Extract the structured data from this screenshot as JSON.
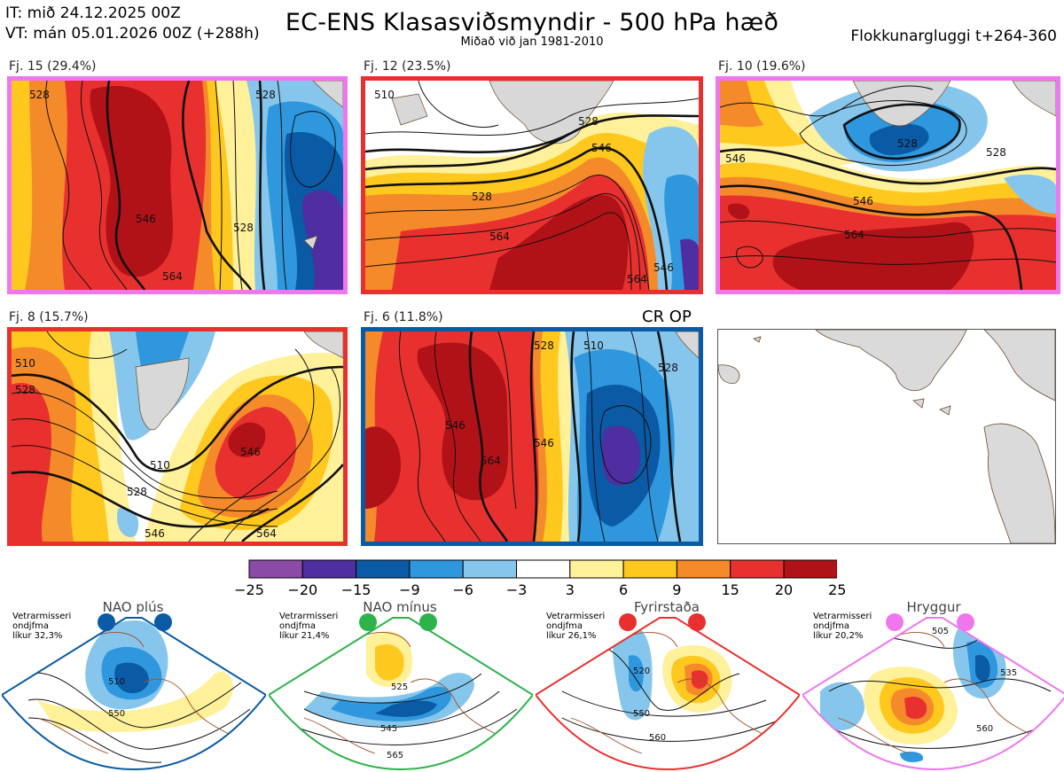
{
  "header": {
    "it_line": "IT: mið 24.12.2025 00Z",
    "vt_line": "VT: mán 05.01.2026 00Z  (+288h)",
    "title": "EC-ENS Klasasviðsmyndir - 500 hPa hæð",
    "subtitle": "Miðað við jan 1981-2010",
    "window": "Flokkunargluggi t+264-360"
  },
  "panels": [
    {
      "label": "Fj. 15 (29.4%)",
      "frame_color": "#ee77ee",
      "contours": [
        "528",
        "546",
        "528",
        "564",
        "528"
      ]
    },
    {
      "label": "Fj. 12 (23.5%)",
      "frame_color": "#e8312f",
      "contours": [
        "510",
        "528",
        "546",
        "528",
        "564",
        "546",
        "564"
      ]
    },
    {
      "label": "Fj. 10 (19.6%)",
      "frame_color": "#ee77ee",
      "contours": [
        "528",
        "546",
        "546",
        "528",
        "564"
      ]
    },
    {
      "label": "Fj. 8 (15.7%)",
      "frame_color": "#e8312f",
      "contours": [
        "510",
        "528",
        "510",
        "528",
        "546",
        "546",
        "564"
      ]
    },
    {
      "label": "Fj. 6 (11.8%)",
      "frame_color": "#0b5aa5",
      "contours": [
        "528",
        "546",
        "564",
        "546",
        "510",
        "528"
      ],
      "tag": "CR OP"
    }
  ],
  "colorbar": {
    "ticks": [
      "−25",
      "−20",
      "−15",
      "−9",
      "−6",
      "−3",
      "3",
      "6",
      "9",
      "15",
      "20",
      "25"
    ],
    "colors": [
      "#8a4aa6",
      "#4e2ea0",
      "#0b5aa5",
      "#2f97dd",
      "#87c6ec",
      "#ffffff",
      "#fff09a",
      "#ffc81e",
      "#f48a2a",
      "#e8312f",
      "#b11217"
    ]
  },
  "regimes": [
    {
      "name": "NAO plús",
      "info": [
        "Vetrarmisseri",
        "ondjfma",
        "líkur 32,3%"
      ],
      "color": "#0b5aa5",
      "contours": [
        "510",
        "550"
      ]
    },
    {
      "name": "NAO mínus",
      "info": [
        "Vetrarmisseri",
        "ondjfma",
        "líkur 21,4%"
      ],
      "color": "#2db34a",
      "contours": [
        "525",
        "545",
        "565"
      ]
    },
    {
      "name": "Fyrirstaða",
      "info": [
        "Vetrarmisseri",
        "ondjfma",
        "líkur 26,1%"
      ],
      "color": "#e8312f",
      "contours": [
        "520",
        "550",
        "560"
      ]
    },
    {
      "name": "Hryggur",
      "info": [
        "Vetrarmisseri",
        "ondjfma",
        "líkur 20,2%"
      ],
      "color": "#ee77ee",
      "contours": [
        "505",
        "535",
        "560"
      ]
    }
  ]
}
